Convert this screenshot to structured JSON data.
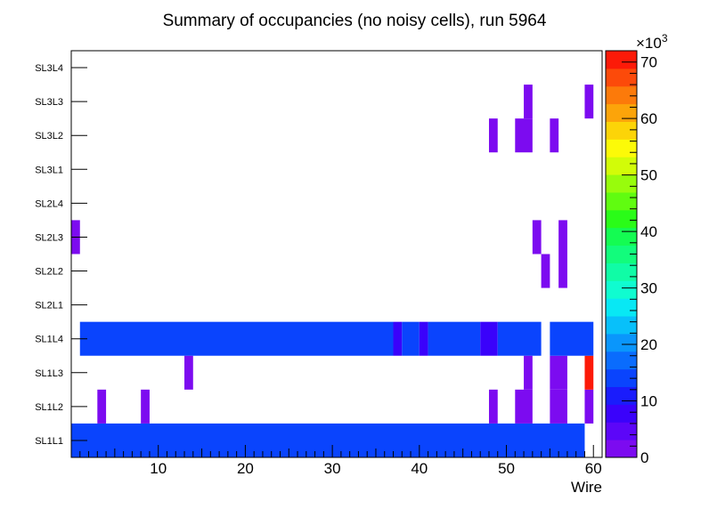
{
  "chart_data": {
    "type": "heatmap",
    "title": "Summary of occupancies (no noisy cells), run 5964",
    "xlabel": "Wire",
    "ylabel": "",
    "xlim": [
      0,
      61
    ],
    "x_ticks": [
      "10",
      "20",
      "30",
      "40",
      "50",
      "60"
    ],
    "y_categories": [
      "SL1L1",
      "SL1L2",
      "SL1L3",
      "SL1L4",
      "SL2L1",
      "SL2L2",
      "SL2L3",
      "SL2L4",
      "SL3L1",
      "SL3L2",
      "SL3L3",
      "SL3L4"
    ],
    "z_range": [
      0,
      72000
    ],
    "z_ticks": [
      "0",
      "10",
      "20",
      "30",
      "40",
      "50",
      "60",
      "70"
    ],
    "z_exponent_label": "×10",
    "z_exponent_power": "3",
    "palette": [
      "#7c0bf0",
      "#5c06f8",
      "#3a02fb",
      "#1a1cfc",
      "#0a44fd",
      "#0a6cfd",
      "#0a96fc",
      "#08c0fa",
      "#08e8f4",
      "#10fcd0",
      "#10fca6",
      "#12fc7c",
      "#14fc52",
      "#2afc18",
      "#60fc10",
      "#98fc0c",
      "#d2fc08",
      "#fcfa08",
      "#fcd408",
      "#fca40a",
      "#fc7a0a",
      "#fc4a0a",
      "#fc1a08"
    ],
    "cells": [
      {
        "layer": "SL1L1",
        "x0": 0,
        "x1": 59,
        "value": 13000
      },
      {
        "layer": "SL1L2",
        "x0": 3,
        "x1": 4,
        "value": 3000
      },
      {
        "layer": "SL1L2",
        "x0": 8,
        "x1": 9,
        "value": 3000
      },
      {
        "layer": "SL1L2",
        "x0": 48,
        "x1": 49,
        "value": 3000
      },
      {
        "layer": "SL1L2",
        "x0": 51,
        "x1": 53,
        "value": 3000
      },
      {
        "layer": "SL1L2",
        "x0": 55,
        "x1": 57,
        "value": 3000
      },
      {
        "layer": "SL1L2",
        "x0": 59,
        "x1": 60,
        "value": 3000
      },
      {
        "layer": "SL1L3",
        "x0": 13,
        "x1": 14,
        "value": 3000
      },
      {
        "layer": "SL1L3",
        "x0": 52,
        "x1": 53,
        "value": 3000
      },
      {
        "layer": "SL1L3",
        "x0": 55,
        "x1": 57,
        "value": 3000
      },
      {
        "layer": "SL1L3",
        "x0": 59,
        "x1": 60,
        "value": 72000
      },
      {
        "layer": "SL1L4",
        "x0": 1,
        "x1": 37,
        "value": 13000
      },
      {
        "layer": "SL1L4",
        "x0": 37,
        "x1": 38,
        "value": 9000
      },
      {
        "layer": "SL1L4",
        "x0": 38,
        "x1": 40,
        "value": 13000
      },
      {
        "layer": "SL1L4",
        "x0": 40,
        "x1": 41,
        "value": 9000
      },
      {
        "layer": "SL1L4",
        "x0": 41,
        "x1": 47,
        "value": 13000
      },
      {
        "layer": "SL1L4",
        "x0": 47,
        "x1": 49,
        "value": 9000
      },
      {
        "layer": "SL1L4",
        "x0": 49,
        "x1": 54,
        "value": 13000
      },
      {
        "layer": "SL1L4",
        "x0": 55,
        "x1": 60,
        "value": 13000
      },
      {
        "layer": "SL2L2",
        "x0": 54,
        "x1": 55,
        "value": 3000
      },
      {
        "layer": "SL2L2",
        "x0": 56,
        "x1": 57,
        "value": 3000
      },
      {
        "layer": "SL2L3",
        "x0": 0,
        "x1": 1,
        "value": 3000
      },
      {
        "layer": "SL2L3",
        "x0": 53,
        "x1": 54,
        "value": 3000
      },
      {
        "layer": "SL2L3",
        "x0": 56,
        "x1": 57,
        "value": 3000
      },
      {
        "layer": "SL3L2",
        "x0": 48,
        "x1": 49,
        "value": 3000
      },
      {
        "layer": "SL3L2",
        "x0": 51,
        "x1": 53,
        "value": 3000
      },
      {
        "layer": "SL3L2",
        "x0": 55,
        "x1": 56,
        "value": 3000
      },
      {
        "layer": "SL3L3",
        "x0": 52,
        "x1": 53,
        "value": 3000
      },
      {
        "layer": "SL3L3",
        "x0": 59,
        "x1": 60,
        "value": 3000
      }
    ]
  }
}
